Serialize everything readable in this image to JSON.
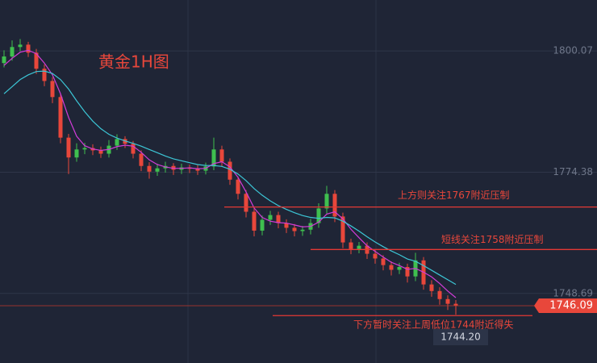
{
  "chart_data": {
    "type": "candlestick",
    "title": "黄金1H图",
    "ylim": [
      1733.96,
      1810.86
    ],
    "yticks": [
      1800.07,
      1774.38,
      1748.69
    ],
    "grid": true,
    "up_color": "#3fbf4f",
    "down_color": "#e8473b",
    "open": [
      1797.5,
      1798.9,
      1800.9,
      1801.4,
      1799.7,
      1796.3,
      1793.7,
      1790.3,
      1781.7,
      1777.5,
      1779.2,
      1779.5,
      1779.0,
      1778.3,
      1780.0,
      1781.4,
      1780.4,
      1778.3,
      1775.7,
      1774.5,
      1775.2,
      1775.7,
      1774.9,
      1775.4,
      1775.1,
      1774.7,
      1775.6,
      1779.2,
      1776.6,
      1772.8,
      1769.8,
      1766.0,
      1762.0,
      1764.3,
      1765.3,
      1763.6,
      1762.6,
      1761.9,
      1762.2,
      1763.6,
      1766.7,
      1769.8,
      1765.0,
      1759.5,
      1758.1,
      1758.8,
      1757.1,
      1756.1,
      1754.7,
      1753.7,
      1754.3,
      1752.3,
      1755.7,
      1750.6,
      1749.2,
      1747.5,
      1746.5
    ],
    "high": [
      1800.2,
      1802.3,
      1802.6,
      1802.0,
      1800.5,
      1797.2,
      1794.5,
      1791.0,
      1782.5,
      1780.5,
      1780.6,
      1780.3,
      1779.8,
      1781.2,
      1782.4,
      1782.0,
      1781.0,
      1779.0,
      1776.5,
      1776.2,
      1776.6,
      1776.3,
      1776.2,
      1776.0,
      1775.9,
      1776.4,
      1781.7,
      1780.0,
      1777.3,
      1773.5,
      1770.6,
      1766.8,
      1765.2,
      1766.2,
      1766.0,
      1764.4,
      1763.4,
      1763.0,
      1764.5,
      1767.8,
      1771.5,
      1770.6,
      1765.8,
      1760.3,
      1759.6,
      1759.5,
      1757.9,
      1756.8,
      1755.5,
      1755.2,
      1755.0,
      1757.3,
      1756.4,
      1751.5,
      1750.0,
      1748.3,
      1747.3
    ],
    "low": [
      1796.6,
      1798.0,
      1800.0,
      1798.8,
      1795.2,
      1792.6,
      1789.0,
      1780.5,
      1774.0,
      1776.6,
      1778.2,
      1778.0,
      1777.4,
      1777.5,
      1779.1,
      1779.5,
      1777.3,
      1774.6,
      1773.0,
      1773.6,
      1774.3,
      1773.8,
      1774.0,
      1774.2,
      1773.8,
      1773.9,
      1774.8,
      1775.6,
      1771.7,
      1768.6,
      1764.8,
      1760.8,
      1761.0,
      1763.2,
      1762.5,
      1761.5,
      1760.8,
      1760.9,
      1761.2,
      1762.6,
      1765.6,
      1763.8,
      1758.3,
      1757.0,
      1757.2,
      1756.0,
      1755.0,
      1753.6,
      1752.5,
      1752.8,
      1751.0,
      1751.3,
      1749.5,
      1748.0,
      1746.3,
      1745.2,
      1744.2
    ],
    "close": [
      1798.9,
      1800.9,
      1801.4,
      1799.7,
      1796.3,
      1793.7,
      1790.3,
      1781.7,
      1777.5,
      1779.2,
      1779.5,
      1779.0,
      1778.3,
      1780.0,
      1781.4,
      1780.4,
      1778.3,
      1775.7,
      1774.5,
      1775.2,
      1775.7,
      1774.9,
      1775.4,
      1775.1,
      1774.7,
      1775.6,
      1779.2,
      1776.6,
      1772.8,
      1769.8,
      1766.0,
      1762.0,
      1764.3,
      1765.3,
      1763.6,
      1762.6,
      1761.9,
      1762.2,
      1763.6,
      1766.7,
      1769.8,
      1765.0,
      1759.5,
      1758.1,
      1758.8,
      1757.1,
      1756.1,
      1754.7,
      1753.7,
      1754.3,
      1752.3,
      1755.7,
      1750.6,
      1749.2,
      1747.5,
      1746.5,
      1746.1
    ],
    "moving_averages": [
      {
        "color": "#d23cd8",
        "values": [
          1797,
          1798.5,
          1799.8,
          1800.2,
          1799.5,
          1797.5,
          1795,
          1791,
          1786,
          1782,
          1780,
          1779.3,
          1779,
          1779.2,
          1779.8,
          1780.1,
          1779.9,
          1778.6,
          1777,
          1776,
          1775.5,
          1775.2,
          1775.2,
          1775.3,
          1775.1,
          1775.2,
          1776.2,
          1776.6,
          1775.5,
          1773.3,
          1770.2,
          1766.8,
          1764.8,
          1764,
          1763.7,
          1763.6,
          1763.2,
          1762.8,
          1762.9,
          1763.8,
          1765.5,
          1766,
          1764.5,
          1762.3,
          1760.5,
          1758.8,
          1757.6,
          1756.4,
          1755.3,
          1754.6,
          1753.8,
          1754,
          1753.2,
          1752.2,
          1750.8,
          1749.2,
          1747.8
        ]
      },
      {
        "color": "#3cc6d6",
        "values": [
          1791,
          1792.5,
          1794,
          1795,
          1795.7,
          1795.8,
          1795.3,
          1794,
          1792,
          1789.5,
          1787.2,
          1785.2,
          1783.6,
          1782.4,
          1781.6,
          1781,
          1780.5,
          1779.9,
          1779.2,
          1778.5,
          1777.8,
          1777.2,
          1776.8,
          1776.4,
          1776,
          1775.8,
          1775.8,
          1775.6,
          1775,
          1774,
          1772.6,
          1770.9,
          1769.5,
          1768.3,
          1767.3,
          1766.5,
          1765.8,
          1765.2,
          1764.8,
          1764.6,
          1764.8,
          1764.7,
          1764,
          1763,
          1761.9,
          1760.7,
          1759.6,
          1758.6,
          1757.7,
          1756.9,
          1756,
          1755.5,
          1754.6,
          1753.6,
          1752.6,
          1751.6,
          1750.6
        ]
      }
    ],
    "annotations": [
      {
        "value": 1767,
        "text": "上方则关注1767附近压制"
      },
      {
        "value": 1758,
        "text": "短线关注1758附近压制"
      },
      {
        "value": 1744,
        "text": "下方暂时关注上周低位1744附近得失"
      }
    ],
    "last_price": 1746.09,
    "crosshair_price": {
      "value": 1744.2,
      "label": "1744.20"
    }
  }
}
